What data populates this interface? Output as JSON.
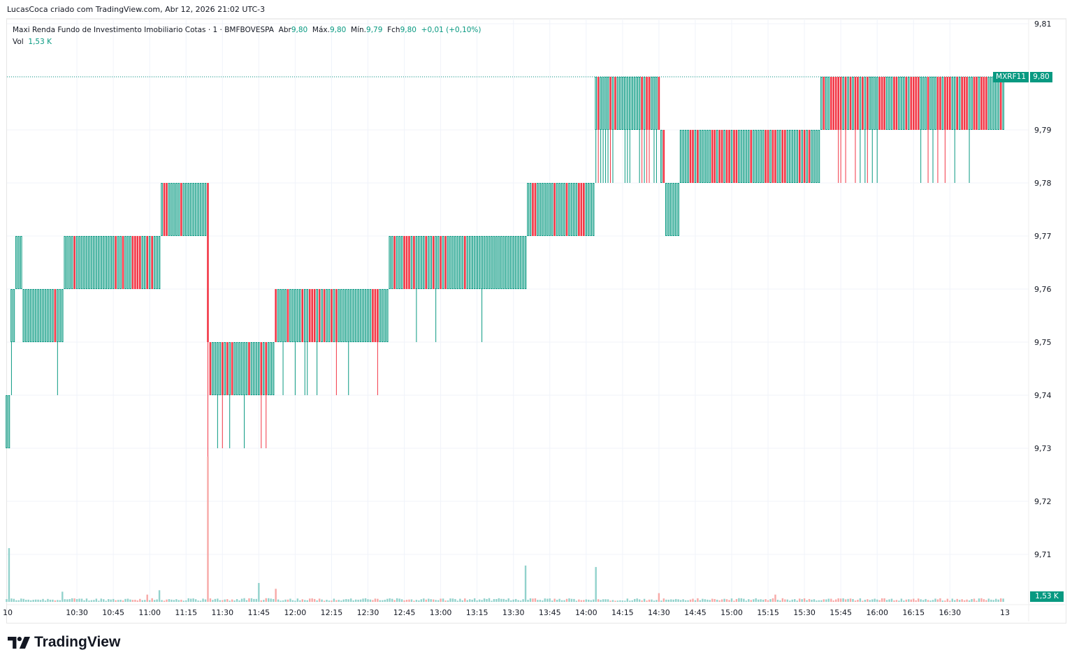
{
  "credit": "LucasCoca criado com TradingView.com, Abr 12, 2026 21:02 UTC-3",
  "legend": {
    "title": "Maxi Renda Fundo de Investimento Imobiliario Cotas · 1 · BMFBOVESPA",
    "open_label": "Abr",
    "open": "9,80",
    "high_label": "Máx.",
    "high": "9,80",
    "low_label": "Mín.",
    "low": "9,79",
    "close_label": "Fch",
    "close": "9,80",
    "change": "+0,01 (+0,10%)",
    "vol_label": "Vol",
    "vol": "1,53 K"
  },
  "price_tag": {
    "symbol": "MXRF11",
    "price": "9,80"
  },
  "volume_tag": "1,53 K",
  "brand": "TradingView",
  "colors": {
    "up": "#089981",
    "down": "#f23645",
    "up_volume": "#92d2cc",
    "down_volume": "#f7a9a7",
    "grid": "#f0f3fa"
  },
  "chart_data": {
    "type": "candlestick",
    "interval": "1 min",
    "y_ticks": [
      "9,81",
      "9,80",
      "9,79",
      "9,78",
      "9,77",
      "9,76",
      "9,75",
      "9,74",
      "9,73",
      "9,72",
      "9,71"
    ],
    "ylim": [
      9.705,
      9.813
    ],
    "x_ticks": [
      "10",
      "10:30",
      "10:45",
      "11:00",
      "11:15",
      "11:30",
      "11:45",
      "12:00",
      "12:15",
      "12:30",
      "12:45",
      "13:00",
      "13:15",
      "13:30",
      "13:45",
      "14:00",
      "14:15",
      "14:30",
      "14:45",
      "15:00",
      "15:15",
      "15:30",
      "15:45",
      "16:00",
      "16:15",
      "16:30",
      "13"
    ],
    "grid": true,
    "last_price": 9.8,
    "segments": [
      {
        "from": "10:01",
        "to": "10:02",
        "low": 9.73,
        "high": 9.74,
        "red_share": 0,
        "dip_share": 0
      },
      {
        "from": "10:03",
        "to": "10:04",
        "low": 9.75,
        "high": 9.76,
        "red_share": 0,
        "dip_share": 0.5
      },
      {
        "from": "10:05",
        "to": "10:07",
        "low": 9.76,
        "high": 9.77,
        "red_share": 0.3,
        "dip_share": 0
      },
      {
        "from": "10:08",
        "to": "10:24",
        "low": 9.75,
        "high": 9.76,
        "red_share": 0.1,
        "dip_share": 0.15
      },
      {
        "from": "10:25",
        "to": "11:04",
        "low": 9.76,
        "high": 9.77,
        "red_share": 0.25,
        "dip_share": 0
      },
      {
        "from": "11:05",
        "to": "11:23",
        "low": 9.77,
        "high": 9.78,
        "red_share": 0.15,
        "dip_share": 0
      },
      {
        "from": "11:24",
        "to": "11:24",
        "open": 9.78,
        "close": 9.75,
        "low": 9.71,
        "high": 9.78,
        "red_share": 1,
        "dip_share": 0
      },
      {
        "from": "11:25",
        "to": "11:51",
        "low": 9.74,
        "high": 9.75,
        "red_share": 0.3,
        "dip_share": 0.2
      },
      {
        "from": "11:52",
        "to": "12:38",
        "low": 9.75,
        "high": 9.76,
        "red_share": 0.25,
        "dip_share": 0.12
      },
      {
        "from": "12:39",
        "to": "13:35",
        "low": 9.76,
        "high": 9.77,
        "red_share": 0.2,
        "dip_share": 0.03
      },
      {
        "from": "13:36",
        "to": "14:03",
        "low": 9.77,
        "high": 9.78,
        "red_share": 0.2,
        "dip_share": 0
      },
      {
        "from": "14:04",
        "to": "14:30",
        "low": 9.79,
        "high": 9.8,
        "red_share": 0.2,
        "dip_share": 0.6
      },
      {
        "from": "14:31",
        "to": "14:32",
        "low": 9.78,
        "high": 9.79,
        "red_share": 0.5,
        "dip_share": 0
      },
      {
        "from": "14:33",
        "to": "14:38",
        "low": 9.77,
        "high": 9.78,
        "red_share": 0,
        "dip_share": 0
      },
      {
        "from": "14:39",
        "to": "15:36",
        "low": 9.78,
        "high": 9.79,
        "red_share": 0.35,
        "dip_share": 0
      },
      {
        "from": "15:37",
        "to": "16:52",
        "low": 9.79,
        "high": 9.8,
        "red_share": 0.45,
        "dip_share": 0.15
      }
    ],
    "volume_unit": "K",
    "volume_base": 1.5,
    "volume_spikes": [
      [
        "10:02",
        37
      ],
      [
        "10:24",
        7
      ],
      [
        "10:59",
        5
      ],
      [
        "11:04",
        8
      ],
      [
        "11:24",
        100
      ],
      [
        "11:45",
        13
      ],
      [
        "11:52",
        9
      ],
      [
        "13:35",
        25
      ],
      [
        "14:04",
        24
      ],
      [
        "14:30",
        6
      ],
      [
        "15:18",
        5
      ],
      [
        "16:53",
        1.53
      ]
    ]
  }
}
